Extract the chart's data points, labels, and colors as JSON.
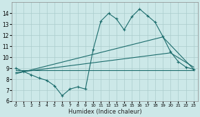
{
  "xlabel": "Humidex (Indice chaleur)",
  "bg_color": "#cce8e8",
  "grid_color": "#aacccc",
  "line_color": "#1a6b6b",
  "xlim": [
    -0.5,
    23.5
  ],
  "ylim": [
    6,
    15
  ],
  "xticks": [
    0,
    1,
    2,
    3,
    4,
    5,
    6,
    7,
    8,
    9,
    10,
    11,
    12,
    13,
    14,
    15,
    16,
    17,
    18,
    19,
    20,
    21,
    22,
    23
  ],
  "yticks": [
    6,
    7,
    8,
    9,
    10,
    11,
    12,
    13,
    14
  ],
  "series_zigzag_x": [
    0,
    1,
    2,
    3,
    4,
    5,
    6,
    7,
    8,
    9,
    10,
    11,
    12,
    13,
    14,
    15,
    16,
    17,
    18,
    19,
    20,
    21,
    22,
    23
  ],
  "series_zigzag_y": [
    9.0,
    8.7,
    8.4,
    8.1,
    7.9,
    7.4,
    6.5,
    7.1,
    7.3,
    7.1,
    10.7,
    13.3,
    14.0,
    13.5,
    12.5,
    13.7,
    14.4,
    13.8,
    13.2,
    11.9,
    10.5,
    9.6,
    9.1,
    8.9
  ],
  "series_line1_x": [
    0,
    23
  ],
  "series_line1_y": [
    8.85,
    8.85
  ],
  "series_line2_x": [
    0,
    20,
    23
  ],
  "series_line2_y": [
    8.6,
    10.4,
    9.1
  ],
  "series_line3_x": [
    0,
    19,
    23
  ],
  "series_line3_y": [
    8.5,
    11.85,
    8.9
  ]
}
